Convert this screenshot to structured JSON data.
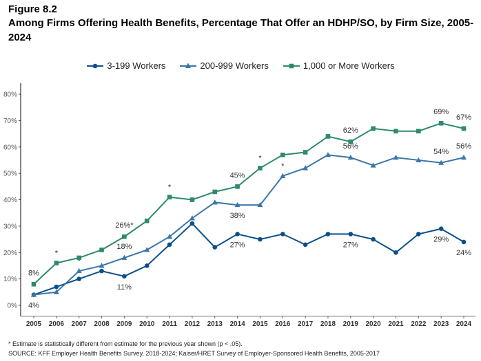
{
  "figure_label": "Figure 8.2",
  "title": "Among Firms Offering Health Benefits, Percentage That Offer an HDHP/SO, by Firm Size, 2005-2024",
  "footnote": "* Estimate is statistically different from estimate for the previous year shown (p < .05).",
  "source": "SOURCE: KFF Employer Health Benefits Survey, 2018-2024; Kaiser/HRET Survey of Employer-Sponsored Health Benefits, 2005-2017",
  "chart_data": {
    "type": "line",
    "title": "Among Firms Offering Health Benefits, Percentage That Offer an HDHP/SO, by Firm Size, 2005-2024",
    "x": [
      2005,
      2006,
      2007,
      2008,
      2009,
      2010,
      2011,
      2012,
      2013,
      2014,
      2015,
      2016,
      2017,
      2018,
      2019,
      2020,
      2021,
      2022,
      2023,
      2024
    ],
    "ylim": [
      0,
      80
    ],
    "yticks": [
      0,
      10,
      20,
      30,
      40,
      50,
      60,
      70,
      80
    ],
    "ytick_labels": [
      "0%",
      "10%",
      "20%",
      "30%",
      "40%",
      "50%",
      "60%",
      "70%",
      "80%"
    ],
    "grid": false,
    "legend_placement": "top",
    "series": [
      {
        "name": "3-199 Workers",
        "color": "#0b4f8a",
        "marker": "circle",
        "values": [
          4,
          7,
          10,
          13,
          11,
          15,
          23,
          31,
          22,
          27,
          25,
          27,
          23,
          27,
          27,
          25,
          20,
          27,
          29,
          24
        ],
        "labels": [
          {
            "year": 2005,
            "text": "4%",
            "pos": "below"
          },
          {
            "year": 2009,
            "text": "11%",
            "pos": "below"
          },
          {
            "year": 2014,
            "text": "27%",
            "pos": "below"
          },
          {
            "year": 2019,
            "text": "27%",
            "pos": "below"
          },
          {
            "year": 2023,
            "text": "29%",
            "pos": "below"
          },
          {
            "year": 2024,
            "text": "24%",
            "pos": "below"
          }
        ],
        "significant": []
      },
      {
        "name": "200-999 Workers",
        "color": "#3a76a8",
        "marker": "triangle",
        "values": [
          4,
          5,
          13,
          15,
          18,
          21,
          26,
          33,
          39,
          38,
          38,
          49,
          52,
          57,
          56,
          53,
          56,
          55,
          54,
          56
        ],
        "labels": [
          {
            "year": 2009,
            "text": "18%",
            "pos": "above"
          },
          {
            "year": 2014,
            "text": "38%",
            "pos": "below"
          },
          {
            "year": 2019,
            "text": "56%",
            "pos": "above"
          },
          {
            "year": 2023,
            "text": "54%",
            "pos": "above"
          },
          {
            "year": 2024,
            "text": "56%",
            "pos": "above"
          }
        ],
        "significant": [
          2007,
          2016
        ]
      },
      {
        "name": "1,000 or More Workers",
        "color": "#2e8a6e",
        "marker": "square",
        "values": [
          8,
          16,
          18,
          21,
          26,
          32,
          41,
          40,
          43,
          45,
          52,
          57,
          58,
          64,
          62,
          67,
          66,
          66,
          69,
          67
        ],
        "labels": [
          {
            "year": 2005,
            "text": "8%",
            "pos": "above"
          },
          {
            "year": 2009,
            "text": "26%*",
            "pos": "above"
          },
          {
            "year": 2014,
            "text": "45%",
            "pos": "above"
          },
          {
            "year": 2019,
            "text": "62%",
            "pos": "above"
          },
          {
            "year": 2023,
            "text": "69%",
            "pos": "above"
          },
          {
            "year": 2024,
            "text": "67%",
            "pos": "above"
          }
        ],
        "significant": [
          2006,
          2011,
          2015
        ]
      }
    ]
  }
}
